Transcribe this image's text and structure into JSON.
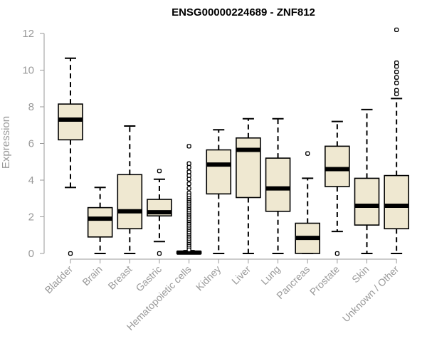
{
  "chart_data": {
    "type": "box",
    "title": "ENSG00000224689 - ZNF812",
    "ylabel": "Expression",
    "xlabel": "",
    "ylim": [
      0,
      12.3
    ],
    "yticks": [
      0,
      2,
      4,
      6,
      8,
      10,
      12
    ],
    "categories": [
      "Bladder",
      "Brain",
      "Breast",
      "Gastric",
      "Hematopoietic cells",
      "Kidney",
      "Liver",
      "Lung",
      "Pancreas",
      "Prostate",
      "Skin",
      "Unknown / Other"
    ],
    "boxes": [
      {
        "min": 3.6,
        "q1": 6.2,
        "median": 7.3,
        "q3": 8.15,
        "max": 10.65,
        "outliers": [
          0
        ]
      },
      {
        "min": 0,
        "q1": 0.9,
        "median": 1.9,
        "q3": 2.5,
        "max": 3.6,
        "outliers": []
      },
      {
        "min": 0,
        "q1": 1.35,
        "median": 2.3,
        "q3": 4.3,
        "max": 6.95,
        "outliers": []
      },
      {
        "min": 0.65,
        "q1": 2.05,
        "median": 2.25,
        "q3": 2.95,
        "max": 4.05,
        "outliers": [
          4.5,
          0
        ]
      },
      {
        "min": 0,
        "q1": 0,
        "median": 0.05,
        "q3": 0.1,
        "max": 0.15,
        "outliers": [
          5.85,
          4.9,
          4.7,
          4.45,
          4.25,
          4.05,
          3.8,
          3.55,
          3.3,
          3.15,
          3.0,
          2.9,
          2.8,
          2.7,
          2.6,
          2.5,
          2.4,
          2.3,
          2.2,
          2.1,
          2.0,
          1.9,
          1.8,
          1.7,
          1.6,
          1.5,
          1.4,
          1.3,
          1.2,
          1.1,
          1.0,
          0.9,
          0.8,
          0.7,
          0.6,
          0.5,
          0.4,
          0.3,
          0.2
        ]
      },
      {
        "min": 0,
        "q1": 3.25,
        "median": 4.85,
        "q3": 5.65,
        "max": 6.75,
        "outliers": []
      },
      {
        "min": 0,
        "q1": 3.05,
        "median": 5.65,
        "q3": 6.3,
        "max": 7.35,
        "outliers": []
      },
      {
        "min": 0,
        "q1": 2.3,
        "median": 3.55,
        "q3": 5.2,
        "max": 7.35,
        "outliers": []
      },
      {
        "min": 0,
        "q1": 0,
        "median": 0.85,
        "q3": 1.65,
        "max": 4.1,
        "outliers": [
          5.45
        ]
      },
      {
        "min": 1.2,
        "q1": 3.65,
        "median": 4.6,
        "q3": 5.85,
        "max": 7.2,
        "outliers": [
          0
        ]
      },
      {
        "min": 0,
        "q1": 1.55,
        "median": 2.6,
        "q3": 4.1,
        "max": 7.85,
        "outliers": []
      },
      {
        "min": 0,
        "q1": 1.35,
        "median": 2.6,
        "q3": 4.25,
        "max": 8.45,
        "outliers": [
          12.2,
          10.4,
          10.2,
          9.9,
          9.6,
          9.3,
          8.9,
          8.7
        ]
      }
    ],
    "colors": {
      "box_fill": "#efe8d1",
      "box_stroke": "#000000",
      "median": "#000000",
      "axis": "#999999"
    },
    "grid": false,
    "legend": "none"
  }
}
